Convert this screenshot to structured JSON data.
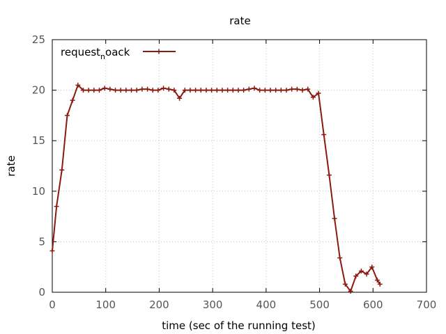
{
  "chart_data": {
    "type": "line",
    "title": "rate",
    "xlabel": "time (sec of the running test)",
    "ylabel": "rate",
    "xlim": [
      0,
      700
    ],
    "ylim": [
      0,
      25
    ],
    "xticks": [
      0,
      100,
      200,
      300,
      400,
      500,
      600,
      700
    ],
    "yticks": [
      0,
      5,
      10,
      15,
      20,
      25
    ],
    "grid": true,
    "legend_position": "top-left",
    "legend": {
      "prefix": "request",
      "subscript": "n",
      "suffix": "oack"
    },
    "series": [
      {
        "name": "request_noack",
        "color": "#8b1a0e",
        "x": [
          0,
          8,
          18,
          28,
          38,
          48,
          58,
          68,
          78,
          88,
          98,
          108,
          118,
          128,
          138,
          148,
          158,
          168,
          178,
          188,
          198,
          208,
          218,
          228,
          238,
          248,
          258,
          268,
          278,
          288,
          298,
          308,
          318,
          328,
          338,
          348,
          358,
          368,
          378,
          388,
          398,
          408,
          418,
          428,
          438,
          448,
          458,
          468,
          478,
          488,
          498,
          508,
          518,
          528,
          538,
          548,
          558,
          568,
          578,
          588,
          598,
          608,
          613
        ],
        "y": [
          4.1,
          8.5,
          12.1,
          17.5,
          19.0,
          20.5,
          20.0,
          20.0,
          20.0,
          20.0,
          20.2,
          20.1,
          20.0,
          20.0,
          20.0,
          20.0,
          20.0,
          20.1,
          20.1,
          20.0,
          20.0,
          20.2,
          20.1,
          20.0,
          19.2,
          20.0,
          20.0,
          20.0,
          20.0,
          20.0,
          20.0,
          20.0,
          20.0,
          20.0,
          20.0,
          20.0,
          20.0,
          20.1,
          20.2,
          20.0,
          20.0,
          20.0,
          20.0,
          20.0,
          20.0,
          20.1,
          20.1,
          20.0,
          20.1,
          19.3,
          19.7,
          15.6,
          11.6,
          7.3,
          3.4,
          0.8,
          0.1,
          1.6,
          2.1,
          1.8,
          2.5,
          1.2,
          0.8
        ]
      }
    ]
  }
}
